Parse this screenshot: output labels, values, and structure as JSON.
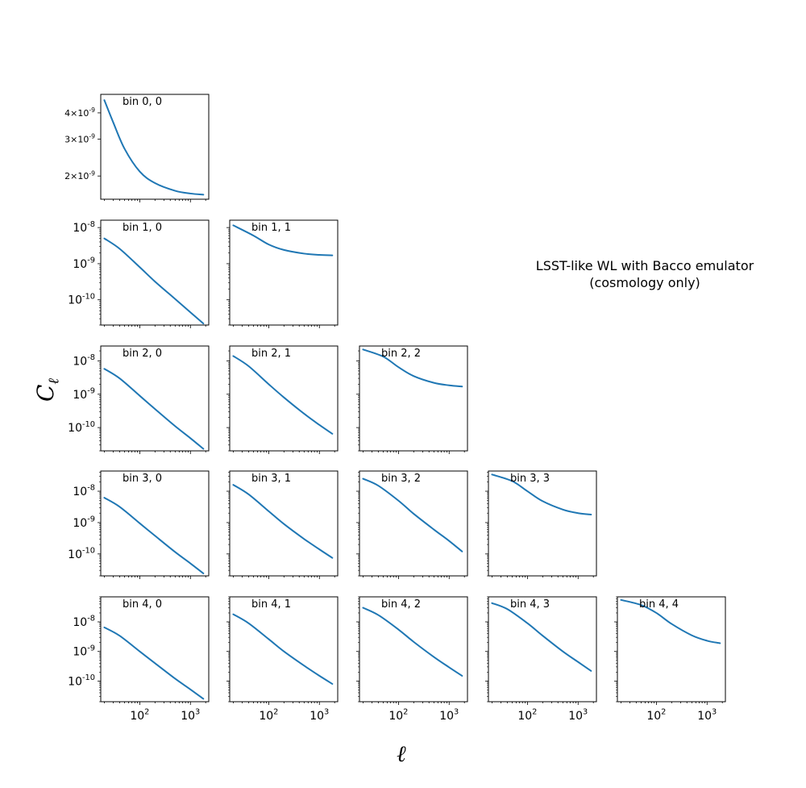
{
  "annotation": {
    "line1": "LSST-like WL with Bacco emulator",
    "line2": "(cosmology only)"
  },
  "axes": {
    "xlabel": "ℓ",
    "ylabel": "C",
    "ylabel_sub": "ℓ"
  },
  "colors": {
    "line": "#1f77b4"
  },
  "chart_data": {
    "type": "line",
    "layout": "lower-triangular grid of 15 panels (5 redshift bins)",
    "x_scale": "log",
    "y_scale": "log",
    "xlim": [
      17,
      2300
    ],
    "x_ticks": [
      "10^2",
      "10^3"
    ],
    "x_tick_values": [
      100,
      1000
    ],
    "line_color": "#1f77b4",
    "panels": [
      {
        "label": "bin 0, 0",
        "i": 0,
        "j": 0,
        "ylim": [
          1.55e-09,
          4.9e-09
        ],
        "y_ticks": [
          "4×10^-9",
          "3×10^-9",
          "2×10^-9"
        ],
        "y_tick_values": [
          4e-09,
          3e-09,
          2e-09
        ],
        "x": [
          20,
          30,
          50,
          100,
          200,
          500,
          1000,
          1800
        ],
        "y": [
          4.6e-09,
          3.6e-09,
          2.7e-09,
          2.1e-09,
          1.85e-09,
          1.7e-09,
          1.65e-09,
          1.63e-09
        ]
      },
      {
        "label": "bin 1, 0",
        "i": 1,
        "j": 0,
        "ylim": [
          2e-11,
          1.6e-08
        ],
        "y_ticks": [
          "10^-8",
          "10^-9",
          "10^-10"
        ],
        "y_tick_values": [
          1e-08,
          1e-09,
          1e-10
        ],
        "x": [
          20,
          40,
          100,
          200,
          500,
          1000,
          1800
        ],
        "y": [
          5e-09,
          2.6e-09,
          8e-10,
          3.2e-10,
          1.05e-10,
          4.5e-11,
          2.2e-11
        ]
      },
      {
        "label": "bin 1, 1",
        "i": 1,
        "j": 1,
        "ylim": [
          2e-11,
          1.6e-08
        ],
        "y_ticks": [
          "10^-8",
          "10^-9",
          "10^-10"
        ],
        "y_tick_values": [
          1e-08,
          1e-09,
          1e-10
        ],
        "x": [
          20,
          50,
          100,
          200,
          500,
          1000,
          1800
        ],
        "y": [
          1.15e-08,
          6e-09,
          3.4e-09,
          2.4e-09,
          1.9e-09,
          1.75e-09,
          1.7e-09
        ]
      },
      {
        "label": "bin 2, 0",
        "i": 2,
        "j": 0,
        "ylim": [
          2e-11,
          2.8e-08
        ],
        "y_ticks": [
          "10^-8",
          "10^-9",
          "10^-10"
        ],
        "y_tick_values": [
          1e-08,
          1e-09,
          1e-10
        ],
        "x": [
          20,
          40,
          100,
          200,
          500,
          1000,
          1800
        ],
        "y": [
          5.8e-09,
          3e-09,
          9e-10,
          3.6e-10,
          1.1e-10,
          4.8e-11,
          2.3e-11
        ]
      },
      {
        "label": "bin 2, 1",
        "i": 2,
        "j": 1,
        "ylim": [
          2e-11,
          2.8e-08
        ],
        "y_ticks": [
          "10^-8",
          "10^-9",
          "10^-10"
        ],
        "y_tick_values": [
          1e-08,
          1e-09,
          1e-10
        ],
        "x": [
          20,
          40,
          100,
          200,
          500,
          1000,
          1800
        ],
        "y": [
          1.4e-08,
          7e-09,
          2e-09,
          8e-10,
          2.6e-10,
          1.2e-10,
          6.5e-11
        ]
      },
      {
        "label": "bin 2, 2",
        "i": 2,
        "j": 2,
        "ylim": [
          2e-11,
          2.8e-08
        ],
        "y_ticks": [
          "10^-8",
          "10^-9",
          "10^-10"
        ],
        "y_tick_values": [
          1e-08,
          1e-09,
          1e-10
        ],
        "x": [
          20,
          50,
          100,
          200,
          500,
          1000,
          1800
        ],
        "y": [
          2.2e-08,
          1.35e-08,
          6.5e-09,
          3.5e-09,
          2.2e-09,
          1.85e-09,
          1.7e-09
        ]
      },
      {
        "label": "bin 3, 0",
        "i": 3,
        "j": 0,
        "ylim": [
          2e-11,
          4.4e-08
        ],
        "y_ticks": [
          "10^-8",
          "10^-9",
          "10^-10"
        ],
        "y_tick_values": [
          1e-08,
          1e-09,
          1e-10
        ],
        "x": [
          20,
          40,
          100,
          200,
          500,
          1000,
          1800
        ],
        "y": [
          6.2e-09,
          3.2e-09,
          9.5e-10,
          3.8e-10,
          1.15e-10,
          5e-11,
          2.4e-11
        ]
      },
      {
        "label": "bin 3, 1",
        "i": 3,
        "j": 1,
        "ylim": [
          2e-11,
          4.4e-08
        ],
        "y_ticks": [
          "10^-8",
          "10^-9",
          "10^-10"
        ],
        "y_tick_values": [
          1e-08,
          1e-09,
          1e-10
        ],
        "x": [
          20,
          40,
          100,
          200,
          500,
          1000,
          1800
        ],
        "y": [
          1.6e-08,
          8e-09,
          2.3e-09,
          9e-10,
          3e-10,
          1.4e-10,
          7.5e-11
        ]
      },
      {
        "label": "bin 3, 2",
        "i": 3,
        "j": 2,
        "ylim": [
          2e-11,
          4.4e-08
        ],
        "y_ticks": [
          "10^-8",
          "10^-9",
          "10^-10"
        ],
        "y_tick_values": [
          1e-08,
          1e-09,
          1e-10
        ],
        "x": [
          20,
          40,
          100,
          200,
          500,
          1000,
          1800
        ],
        "y": [
          2.5e-08,
          1.5e-08,
          5e-09,
          1.9e-09,
          6e-10,
          2.6e-10,
          1.2e-10
        ]
      },
      {
        "label": "bin 3, 3",
        "i": 3,
        "j": 3,
        "ylim": [
          2e-11,
          4.4e-08
        ],
        "y_ticks": [
          "10^-8",
          "10^-9",
          "10^-10"
        ],
        "y_tick_values": [
          1e-08,
          1e-09,
          1e-10
        ],
        "x": [
          20,
          50,
          100,
          200,
          500,
          1000,
          1800
        ],
        "y": [
          3.4e-08,
          2.1e-08,
          1e-08,
          4.8e-09,
          2.6e-09,
          2e-09,
          1.8e-09
        ]
      },
      {
        "label": "bin 4, 0",
        "i": 4,
        "j": 0,
        "ylim": [
          2e-11,
          7e-08
        ],
        "y_ticks": [
          "10^-8",
          "10^-9",
          "10^-10"
        ],
        "y_tick_values": [
          1e-08,
          1e-09,
          1e-10
        ],
        "x": [
          20,
          40,
          100,
          200,
          500,
          1000,
          1800
        ],
        "y": [
          6.5e-09,
          3.4e-09,
          1e-09,
          4e-10,
          1.2e-10,
          5.2e-11,
          2.5e-11
        ]
      },
      {
        "label": "bin 4, 1",
        "i": 4,
        "j": 1,
        "ylim": [
          2e-11,
          7e-08
        ],
        "y_ticks": [
          "10^-8",
          "10^-9",
          "10^-10"
        ],
        "y_tick_values": [
          1e-08,
          1e-09,
          1e-10
        ],
        "x": [
          20,
          40,
          100,
          200,
          500,
          1000,
          1800
        ],
        "y": [
          1.8e-08,
          9e-09,
          2.6e-09,
          1e-09,
          3.3e-10,
          1.5e-10,
          8e-11
        ]
      },
      {
        "label": "bin 4, 2",
        "i": 4,
        "j": 2,
        "ylim": [
          2e-11,
          7e-08
        ],
        "y_ticks": [
          "10^-8",
          "10^-9",
          "10^-10"
        ],
        "y_tick_values": [
          1e-08,
          1e-09,
          1e-10
        ],
        "x": [
          20,
          40,
          100,
          200,
          500,
          1000,
          1800
        ],
        "y": [
          3e-08,
          1.7e-08,
          5.5e-09,
          2.1e-09,
          6.5e-10,
          2.9e-10,
          1.5e-10
        ]
      },
      {
        "label": "bin 4, 3",
        "i": 4,
        "j": 3,
        "ylim": [
          2e-11,
          7e-08
        ],
        "y_ticks": [
          "10^-8",
          "10^-9",
          "10^-10"
        ],
        "y_tick_values": [
          1e-08,
          1e-09,
          1e-10
        ],
        "x": [
          20,
          40,
          100,
          200,
          500,
          1000,
          1800
        ],
        "y": [
          4.3e-08,
          2.7e-08,
          9e-09,
          3.4e-09,
          1e-09,
          4.4e-10,
          2.2e-10
        ]
      },
      {
        "label": "bin 4, 4",
        "i": 4,
        "j": 4,
        "ylim": [
          2e-11,
          7e-08
        ],
        "y_ticks": [
          "10^-8",
          "10^-9",
          "10^-10"
        ],
        "y_tick_values": [
          1e-08,
          1e-09,
          1e-10
        ],
        "x": [
          20,
          50,
          100,
          200,
          500,
          1000,
          1800
        ],
        "y": [
          5.5e-08,
          3.7e-08,
          2e-08,
          8.5e-09,
          3.5e-09,
          2.3e-09,
          1.9e-09
        ]
      }
    ]
  }
}
